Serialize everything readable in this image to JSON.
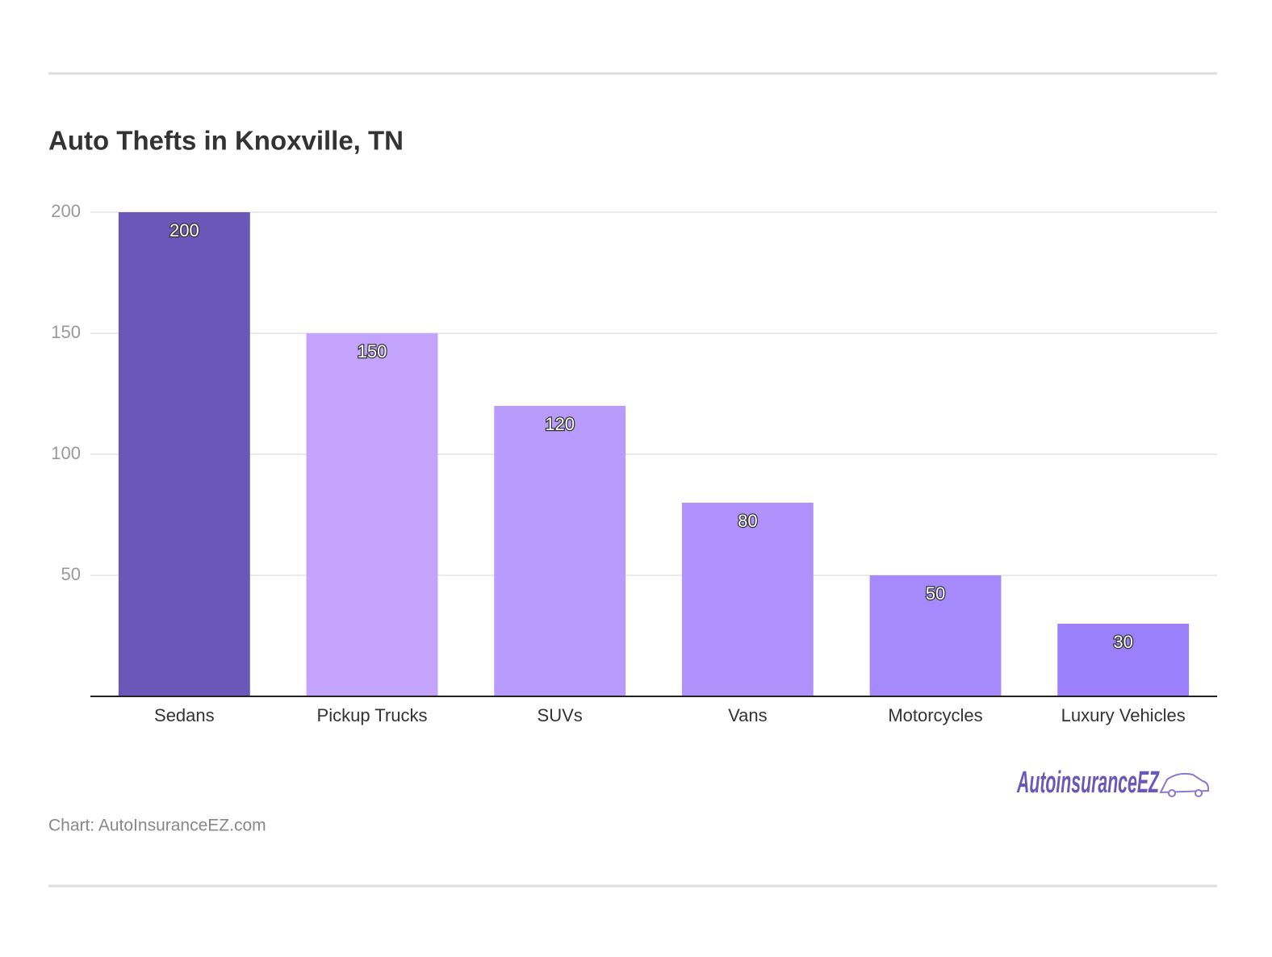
{
  "chart_data": {
    "type": "bar",
    "title": "Auto Thefts in Knoxville, TN",
    "categories": [
      "Sedans",
      "Pickup Trucks",
      "SUVs",
      "Vans",
      "Motorcycles",
      "Luxury Vehicles"
    ],
    "values": [
      200,
      150,
      120,
      80,
      50,
      30
    ],
    "colors": [
      "#6a58b8",
      "#c4a3fd",
      "#b99afd",
      "#b192fc",
      "#a68afc",
      "#9c80fb"
    ],
    "ylim": [
      0,
      200
    ],
    "yticks": [
      50,
      100,
      150,
      200
    ],
    "grid": true,
    "source": "Chart: AutoInsuranceEZ.com",
    "logo": "AutoinsuranceEZ"
  }
}
